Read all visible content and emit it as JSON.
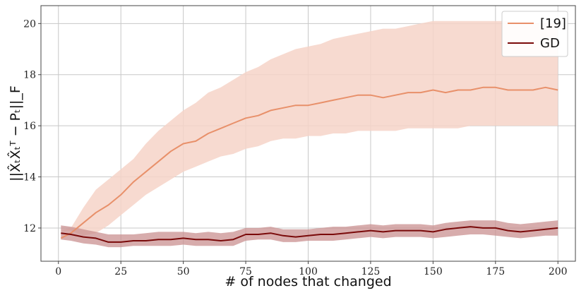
{
  "chart_data": {
    "type": "line",
    "xlabel": "# of nodes that changed",
    "ylabel": "||X̂ₜX̂ₜᵀ − Pₜ||_F",
    "xlim": [
      -7,
      207
    ],
    "ylim": [
      10.7,
      20.7
    ],
    "x_ticks": [
      0,
      25,
      50,
      75,
      100,
      125,
      150,
      175,
      200
    ],
    "y_ticks": [
      12,
      14,
      16,
      18,
      20
    ],
    "grid": true,
    "legend_position": "top-right",
    "x": [
      1,
      5,
      10,
      15,
      20,
      25,
      30,
      35,
      40,
      45,
      50,
      55,
      60,
      65,
      70,
      75,
      80,
      85,
      90,
      95,
      100,
      105,
      110,
      115,
      120,
      125,
      130,
      135,
      140,
      145,
      150,
      155,
      160,
      165,
      170,
      175,
      180,
      185,
      190,
      195,
      200
    ],
    "series": [
      {
        "name": "[19]",
        "color": "#e8906a",
        "band_color": "#f6d4c8",
        "values": [
          11.6,
          11.8,
          12.2,
          12.6,
          12.9,
          13.3,
          13.8,
          14.2,
          14.6,
          15.0,
          15.3,
          15.4,
          15.7,
          15.9,
          16.1,
          16.3,
          16.4,
          16.6,
          16.7,
          16.8,
          16.8,
          16.9,
          17.0,
          17.1,
          17.2,
          17.2,
          17.1,
          17.2,
          17.3,
          17.3,
          17.4,
          17.3,
          17.4,
          17.4,
          17.5,
          17.5,
          17.4,
          17.4,
          17.4,
          17.5,
          17.4
        ],
        "lower": [
          11.9,
          11.9,
          11.7,
          11.8,
          12.1,
          12.5,
          12.9,
          13.3,
          13.6,
          13.9,
          14.2,
          14.4,
          14.6,
          14.8,
          14.9,
          15.1,
          15.2,
          15.4,
          15.5,
          15.5,
          15.6,
          15.6,
          15.7,
          15.7,
          15.8,
          15.8,
          15.8,
          15.8,
          15.9,
          15.9,
          15.9,
          15.9,
          15.9,
          16.0,
          16.0,
          16.0,
          16.0,
          16.0,
          16.0,
          16.0,
          16.0
        ],
        "upper": [
          11.9,
          12.0,
          12.8,
          13.5,
          13.9,
          14.3,
          14.7,
          15.3,
          15.8,
          16.2,
          16.6,
          16.9,
          17.3,
          17.5,
          17.8,
          18.1,
          18.3,
          18.6,
          18.8,
          19.0,
          19.1,
          19.2,
          19.4,
          19.5,
          19.6,
          19.7,
          19.8,
          19.8,
          19.9,
          20.0,
          20.1,
          20.1,
          20.1,
          20.1,
          20.1,
          20.1,
          20.1,
          20.0,
          20.0,
          20.0,
          20.0
        ]
      },
      {
        "name": "GD",
        "color": "#7a0a0a",
        "band_color": "#c99090",
        "values": [
          11.8,
          11.75,
          11.65,
          11.6,
          11.45,
          11.45,
          11.5,
          11.5,
          11.55,
          11.55,
          11.6,
          11.55,
          11.55,
          11.5,
          11.55,
          11.75,
          11.75,
          11.8,
          11.7,
          11.65,
          11.7,
          11.75,
          11.75,
          11.8,
          11.85,
          11.9,
          11.85,
          11.9,
          11.9,
          11.9,
          11.85,
          11.95,
          12.0,
          12.05,
          12.0,
          12.0,
          11.9,
          11.85,
          11.9,
          11.95,
          12.0
        ],
        "lower": [
          11.55,
          11.5,
          11.4,
          11.35,
          11.25,
          11.25,
          11.3,
          11.3,
          11.3,
          11.3,
          11.35,
          11.3,
          11.3,
          11.3,
          11.3,
          11.5,
          11.55,
          11.55,
          11.45,
          11.45,
          11.5,
          11.5,
          11.5,
          11.55,
          11.6,
          11.65,
          11.6,
          11.65,
          11.65,
          11.65,
          11.6,
          11.65,
          11.7,
          11.75,
          11.75,
          11.7,
          11.65,
          11.6,
          11.65,
          11.7,
          11.7
        ],
        "upper": [
          12.1,
          12.05,
          11.95,
          11.85,
          11.75,
          11.75,
          11.75,
          11.8,
          11.85,
          11.85,
          11.85,
          11.8,
          11.85,
          11.8,
          11.85,
          12.0,
          12.0,
          12.05,
          11.95,
          11.95,
          11.95,
          12.0,
          12.05,
          12.05,
          12.1,
          12.15,
          12.1,
          12.15,
          12.15,
          12.15,
          12.1,
          12.2,
          12.25,
          12.3,
          12.3,
          12.3,
          12.2,
          12.15,
          12.2,
          12.25,
          12.3
        ]
      }
    ]
  }
}
